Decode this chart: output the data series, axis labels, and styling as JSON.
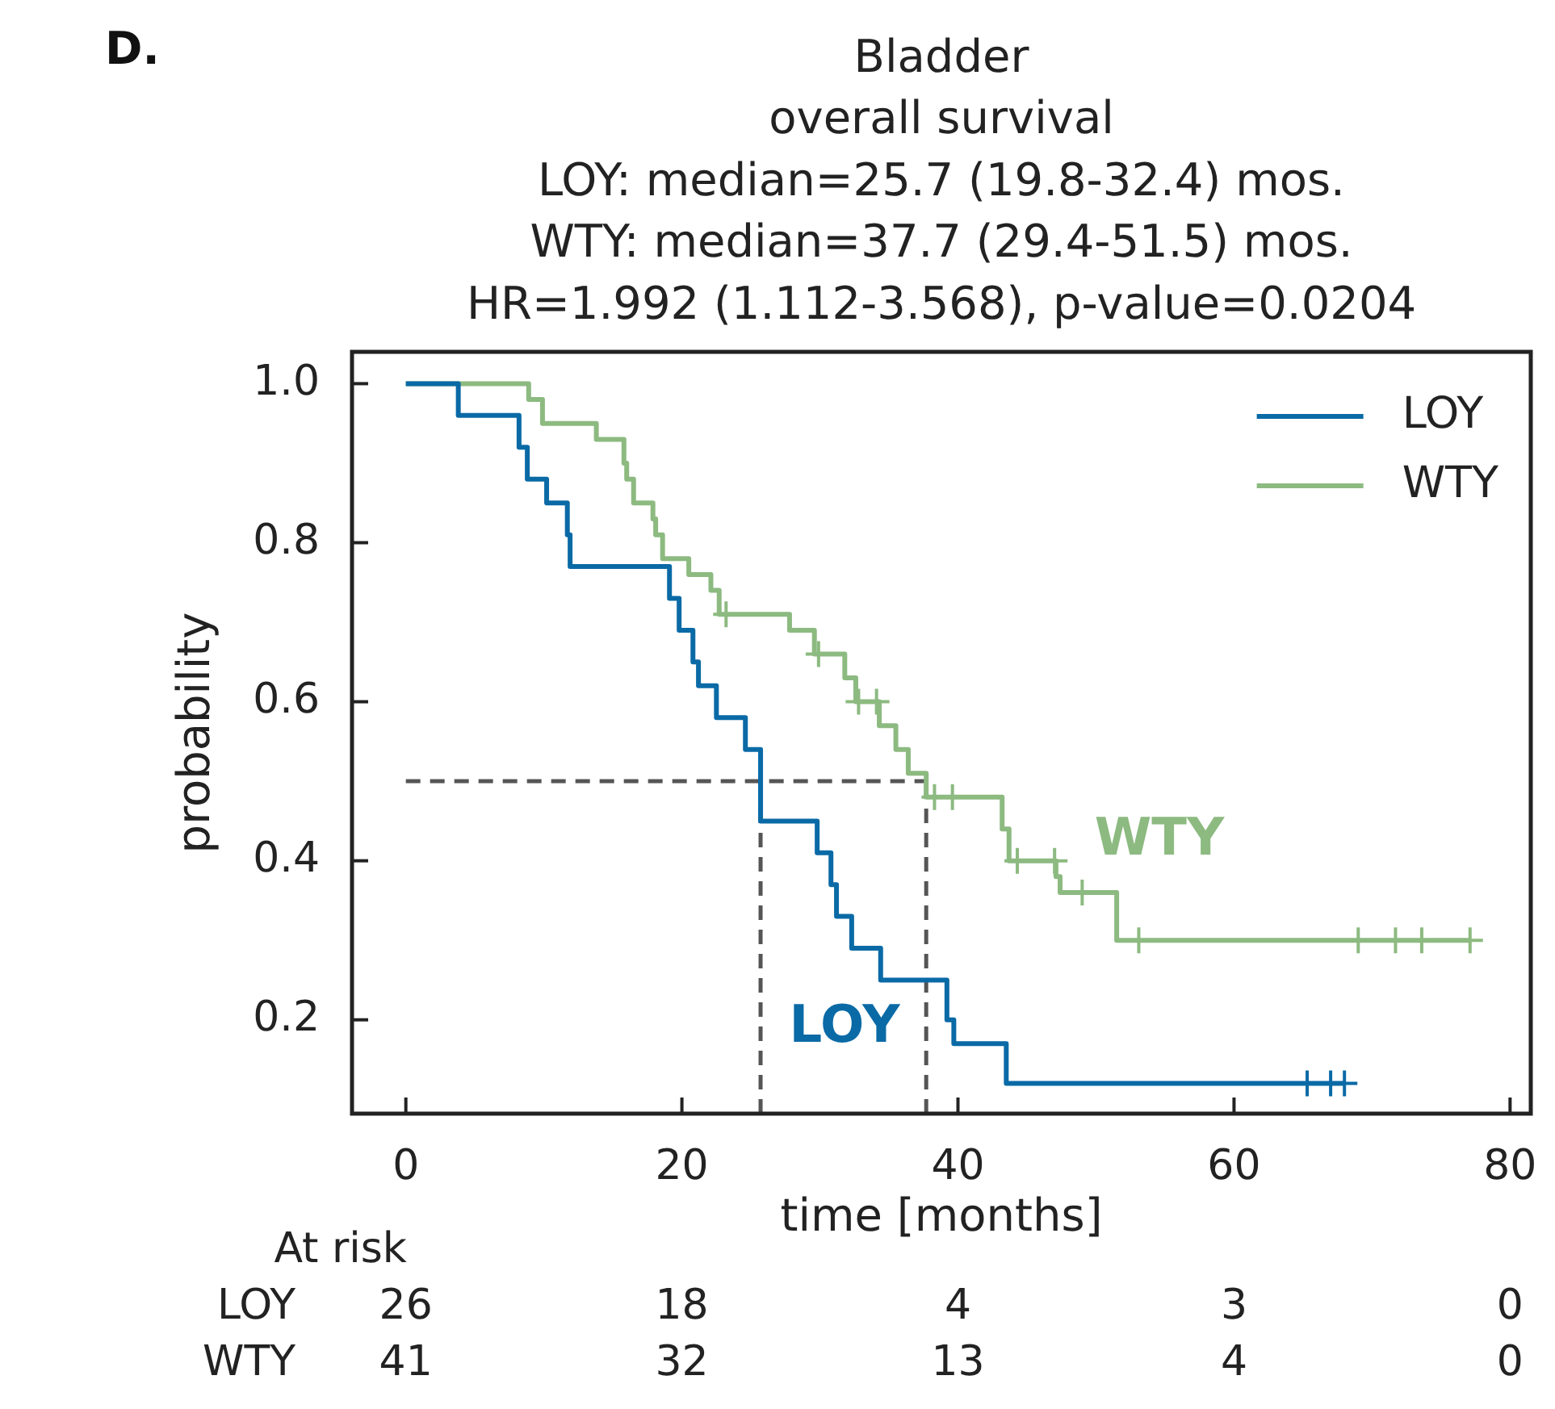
{
  "chart_data": {
    "type": "step",
    "title": "Bladder\noverall survival",
    "subtitle": "LOY: median=25.7 (19.8-32.4) mos.\nWTY: median=37.7 (29.4-51.5) mos.\nHR=1.992 (1.112-3.568), p-value=0.0204",
    "xlabel": "time [months]",
    "ylabel": "probability",
    "xlim": [
      -3.9,
      81.5
    ],
    "xticks": [
      0,
      20,
      40,
      60,
      80
    ],
    "ylim": [
      0.082,
      1.04
    ],
    "yticks": [
      0.2,
      0.4,
      0.6,
      0.8,
      {
        "value": 1,
        "label": "1.0"
      }
    ],
    "grid": false,
    "legend": "top right",
    "series": [
      {
        "name": "LOY",
        "color": "#0a6aa6",
        "x": [
          0,
          3.8,
          8.2,
          8.8,
          10.2,
          11.7,
          11.9,
          19.1,
          19.8,
          20.8,
          21.2,
          22.5,
          24.6,
          25.7,
          29.8,
          30.8,
          31.2,
          32.3,
          34.4,
          39.2,
          39.7,
          43.5,
          68.0
        ],
        "values": [
          1.0,
          0.96,
          0.92,
          0.88,
          0.85,
          0.81,
          0.77,
          0.73,
          0.69,
          0.65,
          0.62,
          0.58,
          0.54,
          0.45,
          0.41,
          0.37,
          0.33,
          0.29,
          0.25,
          0.2,
          0.17,
          0.12,
          0.12
        ]
      },
      {
        "name": "WTY",
        "color": "#8cba80",
        "x": [
          0,
          8.9,
          9.9,
          13.8,
          15.8,
          16.0,
          16.5,
          17.9,
          18.1,
          18.6,
          20.5,
          22.1,
          22.7,
          27.8,
          29.6,
          31.8,
          32.6,
          34.3,
          35.5,
          36.4,
          37.7,
          43.2,
          43.7,
          47.1,
          47.4,
          51.5,
          77.1
        ],
        "values": [
          1.0,
          0.98,
          0.95,
          0.93,
          0.9,
          0.88,
          0.85,
          0.83,
          0.81,
          0.78,
          0.76,
          0.74,
          0.71,
          0.69,
          0.66,
          0.63,
          0.6,
          0.57,
          0.54,
          0.51,
          0.48,
          0.44,
          0.4,
          0.38,
          0.36,
          0.3,
          0.3
        ]
      },
      {
        "color": "#0a6aa6",
        "type": "scatter",
        "marker": "cross",
        "x": [
          65.3,
          67.0,
          68.0
        ],
        "values": [
          0.12,
          0.12,
          0.12
        ]
      },
      {
        "color": "#8cba80",
        "type": "scatter",
        "marker": "cross",
        "x": [
          23.2,
          29.9,
          32.8,
          34.1,
          38.3,
          39.6,
          44.3,
          47.0,
          49.0,
          53.1,
          69.0,
          71.7,
          73.6,
          77.1
        ],
        "values": [
          0.71,
          0.66,
          0.6,
          0.6,
          0.48,
          0.48,
          0.4,
          0.4,
          0.36,
          0.3,
          0.3,
          0.3,
          0.3,
          0.3
        ]
      }
    ],
    "ref_lines": [
      {
        "axis": "y",
        "value": 0.5,
        "color": "#555555",
        "line_style": "dashed"
      },
      {
        "axis": "x",
        "value": 25.7,
        "color": "#555555",
        "line_style": "dashed"
      },
      {
        "axis": "x",
        "value": 37.7,
        "color": "#555555",
        "line_style": "dashed"
      }
    ],
    "annotations": [
      "D.",
      "At risk",
      "LOY",
      "26",
      "18",
      "4",
      "3",
      "0",
      "WTY",
      "41",
      "32",
      "13",
      "4",
      "0",
      "LOY",
      "WTY"
    ]
  }
}
